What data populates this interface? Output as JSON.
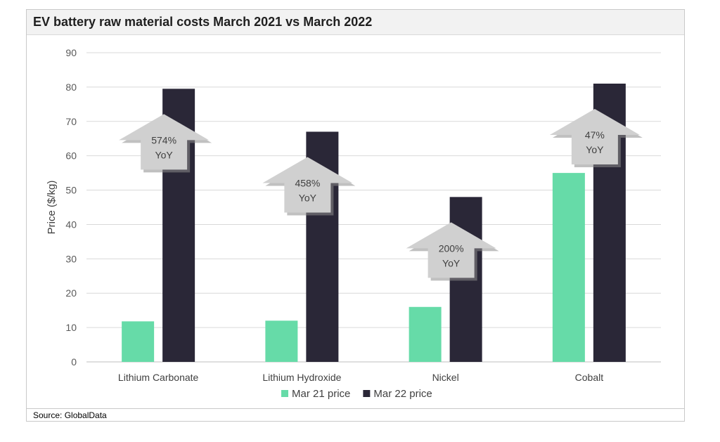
{
  "header": {
    "title": "EV battery raw material costs March 2021 vs March 2022"
  },
  "footer": {
    "source": "Source: GlobalData"
  },
  "chart_data": {
    "type": "bar",
    "title": "EV battery raw material costs March 2021 vs March 2022",
    "xlabel": "",
    "ylabel": "Price ($/kg)",
    "ylim": [
      0,
      90
    ],
    "yticks": [
      0,
      10,
      20,
      30,
      40,
      50,
      60,
      70,
      80,
      90
    ],
    "grid": true,
    "legend_position": "bottom",
    "categories": [
      "Lithium Carbonate",
      "Lithium Hydroxide",
      "Nickel",
      "Cobalt"
    ],
    "series": [
      {
        "name": "Mar 21 price",
        "color": "#66dba8",
        "values": [
          11.8,
          12.0,
          16.0,
          55.0
        ]
      },
      {
        "name": "Mar 22 price",
        "color": "#2a2737",
        "values": [
          79.5,
          67.0,
          48.0,
          81.0
        ]
      }
    ],
    "annotations": [
      {
        "category": "Lithium Carbonate",
        "line1": "574%",
        "line2": "YoY",
        "level": 79.5
      },
      {
        "category": "Lithium Hydroxide",
        "line1": "458%",
        "line2": "YoY",
        "level": 67.0
      },
      {
        "category": "Nickel",
        "line1": "200%",
        "line2": "YoY",
        "level": 48.0
      },
      {
        "category": "Cobalt",
        "line1": "47%",
        "line2": "YoY",
        "level": 81.0
      }
    ]
  }
}
